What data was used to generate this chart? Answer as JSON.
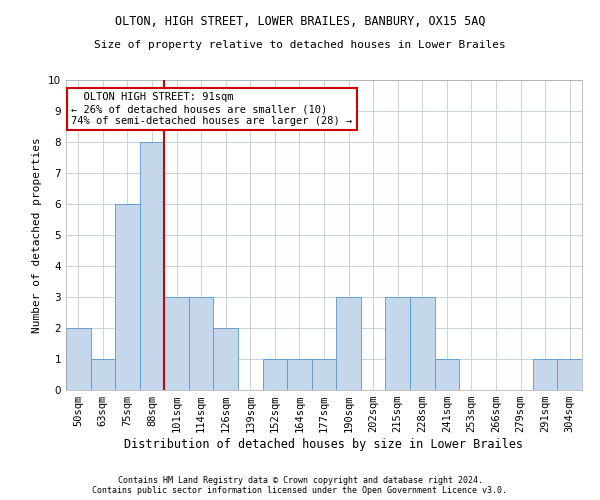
{
  "title": "OLTON, HIGH STREET, LOWER BRAILES, BANBURY, OX15 5AQ",
  "subtitle": "Size of property relative to detached houses in Lower Brailes",
  "xlabel": "Distribution of detached houses by size in Lower Brailes",
  "ylabel": "Number of detached properties",
  "footnote1": "Contains HM Land Registry data © Crown copyright and database right 2024.",
  "footnote2": "Contains public sector information licensed under the Open Government Licence v3.0.",
  "annotation_line1": "  OLTON HIGH STREET: 91sqm",
  "annotation_line2": "← 26% of detached houses are smaller (10)",
  "annotation_line3": "74% of semi-detached houses are larger (28) →",
  "categories": [
    "50sqm",
    "63sqm",
    "75sqm",
    "88sqm",
    "101sqm",
    "114sqm",
    "126sqm",
    "139sqm",
    "152sqm",
    "164sqm",
    "177sqm",
    "190sqm",
    "202sqm",
    "215sqm",
    "228sqm",
    "241sqm",
    "253sqm",
    "266sqm",
    "279sqm",
    "291sqm",
    "304sqm"
  ],
  "values": [
    2,
    1,
    6,
    8,
    3,
    3,
    2,
    0,
    1,
    1,
    1,
    3,
    0,
    3,
    3,
    1,
    0,
    0,
    0,
    1,
    1
  ],
  "bar_color": "#c5d8eb",
  "bar_edge_color": "#5a96c8",
  "red_line_x": 3.5,
  "ylim": [
    0,
    10
  ],
  "yticks": [
    0,
    1,
    2,
    3,
    4,
    5,
    6,
    7,
    8,
    9,
    10
  ],
  "background_color": "#ffffff",
  "grid_color": "#c8d4e0",
  "annotation_box_color": "#ffffff",
  "annotation_box_edge": "#cc0000",
  "red_line_color": "#cc0000",
  "title_fontsize": 8.5,
  "subtitle_fontsize": 8.0,
  "xlabel_fontsize": 8.5,
  "ylabel_fontsize": 8.0,
  "tick_fontsize": 7.5,
  "annotation_fontsize": 7.5,
  "footnote_fontsize": 6.0
}
